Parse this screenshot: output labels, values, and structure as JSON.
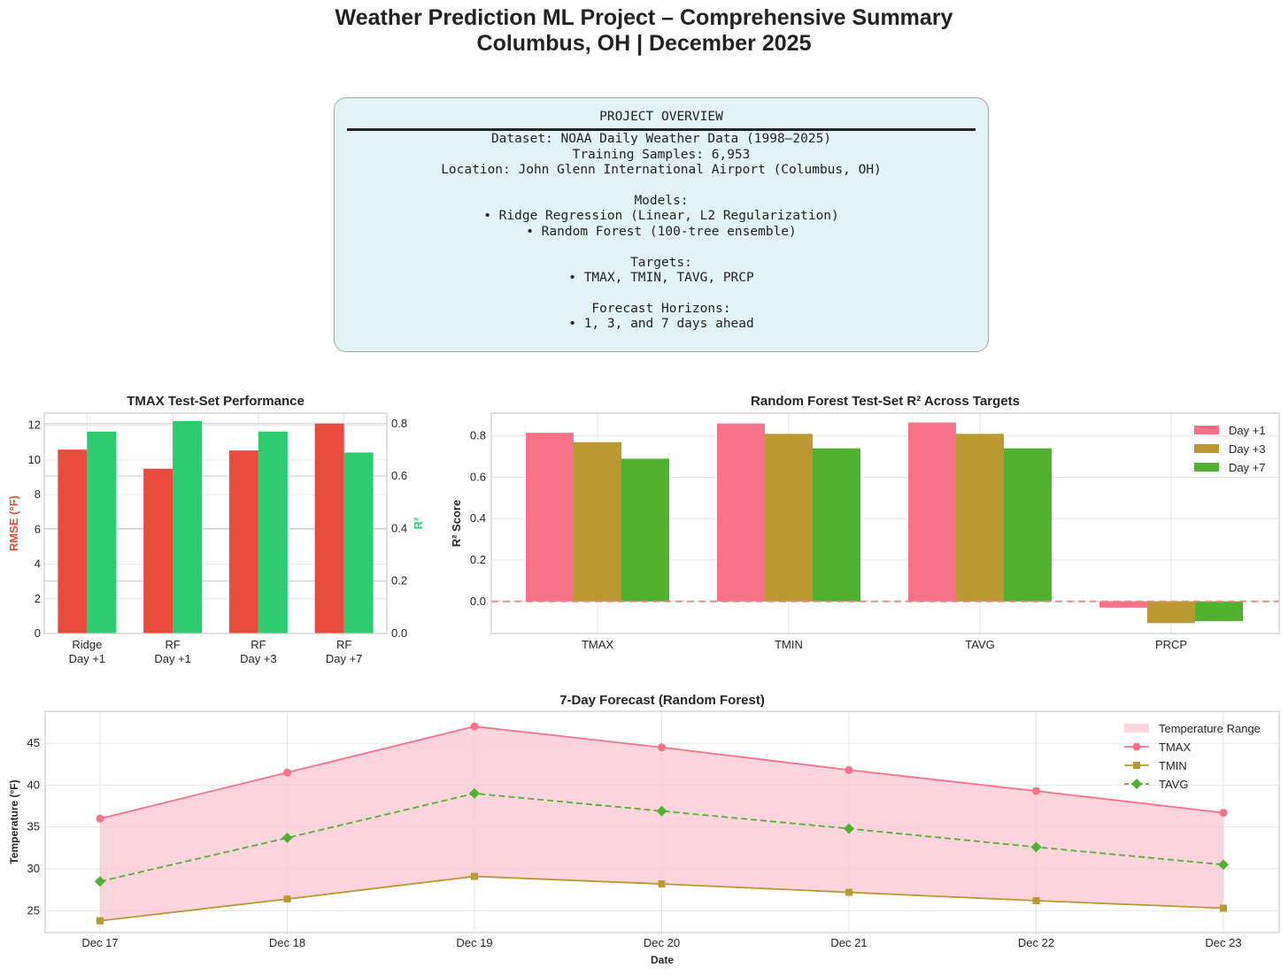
{
  "header": {
    "title_line1": "Weather Prediction ML Project – Comprehensive Summary",
    "title_line2": "Columbus, OH | December 2025"
  },
  "overview": {
    "heading": "PROJECT OVERVIEW",
    "lines": [
      "Dataset: NOAA Daily Weather Data (1998–2025)",
      "Training Samples: 6,953",
      "Location: John Glenn International Airport (Columbus, OH)",
      "",
      "Models:",
      "• Ridge Regression (Linear, L2 Regularization)",
      "• Random Forest (100-tree ensemble)",
      "",
      "Targets:",
      "• TMAX, TMIN, TAVG, PRCP",
      "",
      "Forecast Horizons:",
      "• 1, 3, and 7 days ahead"
    ]
  },
  "colors": {
    "rmse": "#e74c3c",
    "r2": "#2ecc71",
    "day1": "#f77189",
    "day3": "#bb9832",
    "day7": "#50b131",
    "tmax": "#f77189",
    "tmin": "#bb9832",
    "tavg": "#50b131",
    "range_fill": "#f9c5d1",
    "zero_line": "#f08080"
  },
  "chart_data": [
    {
      "id": "tmax_perf",
      "type": "bar",
      "title": "TMAX Test-Set Performance",
      "categories": [
        [
          "Ridge",
          "Day +1"
        ],
        [
          "RF",
          "Day +1"
        ],
        [
          "RF",
          "Day +3"
        ],
        [
          "RF",
          "Day +7"
        ]
      ],
      "series": [
        {
          "name": "RMSE (°F)",
          "axis": "left",
          "values": [
            10.6,
            9.5,
            10.55,
            12.1
          ]
        },
        {
          "name": "R²",
          "axis": "right",
          "values": [
            0.77,
            0.81,
            0.77,
            0.69
          ]
        }
      ],
      "ylabel_left": "RMSE (°F)",
      "ylabel_right": "R²",
      "ylim_left": [
        0,
        12.7
      ],
      "ylim_right": [
        0,
        0.84
      ],
      "yticks_left": [
        "0",
        "2",
        "4",
        "6",
        "8",
        "10",
        "12"
      ],
      "yticks_right": [
        "0.0",
        "0.2",
        "0.4",
        "0.6",
        "0.8"
      ]
    },
    {
      "id": "rf_r2",
      "type": "bar",
      "title": "Random Forest Test-Set R² Across Targets",
      "categories": [
        "TMAX",
        "TMIN",
        "TAVG",
        "PRCP"
      ],
      "series": [
        {
          "name": "Day +1",
          "values": [
            0.815,
            0.86,
            0.865,
            -0.03
          ]
        },
        {
          "name": "Day +3",
          "values": [
            0.77,
            0.81,
            0.81,
            -0.105
          ]
        },
        {
          "name": "Day +7",
          "values": [
            0.69,
            0.74,
            0.74,
            -0.095
          ]
        }
      ],
      "ylabel": "R² Score",
      "ylim": [
        -0.155,
        0.91
      ],
      "yticks": [
        "0.0",
        "0.2",
        "0.4",
        "0.6",
        "0.8"
      ],
      "legend": "top-right"
    },
    {
      "id": "forecast",
      "type": "line",
      "title": "7-Day Forecast (Random Forest)",
      "x": [
        "Dec 17",
        "Dec 18",
        "Dec 19",
        "Dec 20",
        "Dec 21",
        "Dec 22",
        "Dec 23"
      ],
      "series": [
        {
          "name": "TMAX",
          "values": [
            36.0,
            41.5,
            47.0,
            44.5,
            41.8,
            39.3,
            36.7
          ]
        },
        {
          "name": "TMIN",
          "values": [
            23.8,
            26.4,
            29.1,
            28.2,
            27.2,
            26.2,
            25.3
          ]
        },
        {
          "name": "TAVG",
          "values": [
            28.5,
            33.7,
            39.0,
            36.9,
            34.8,
            32.6,
            30.5
          ]
        }
      ],
      "range_label": "Temperature Range",
      "xlabel": "Date",
      "ylabel": "Temperature (°F)",
      "ylim": [
        22.4,
        48.8
      ],
      "yticks": [
        "25",
        "30",
        "35",
        "40",
        "45"
      ],
      "legend": "top-right"
    }
  ]
}
